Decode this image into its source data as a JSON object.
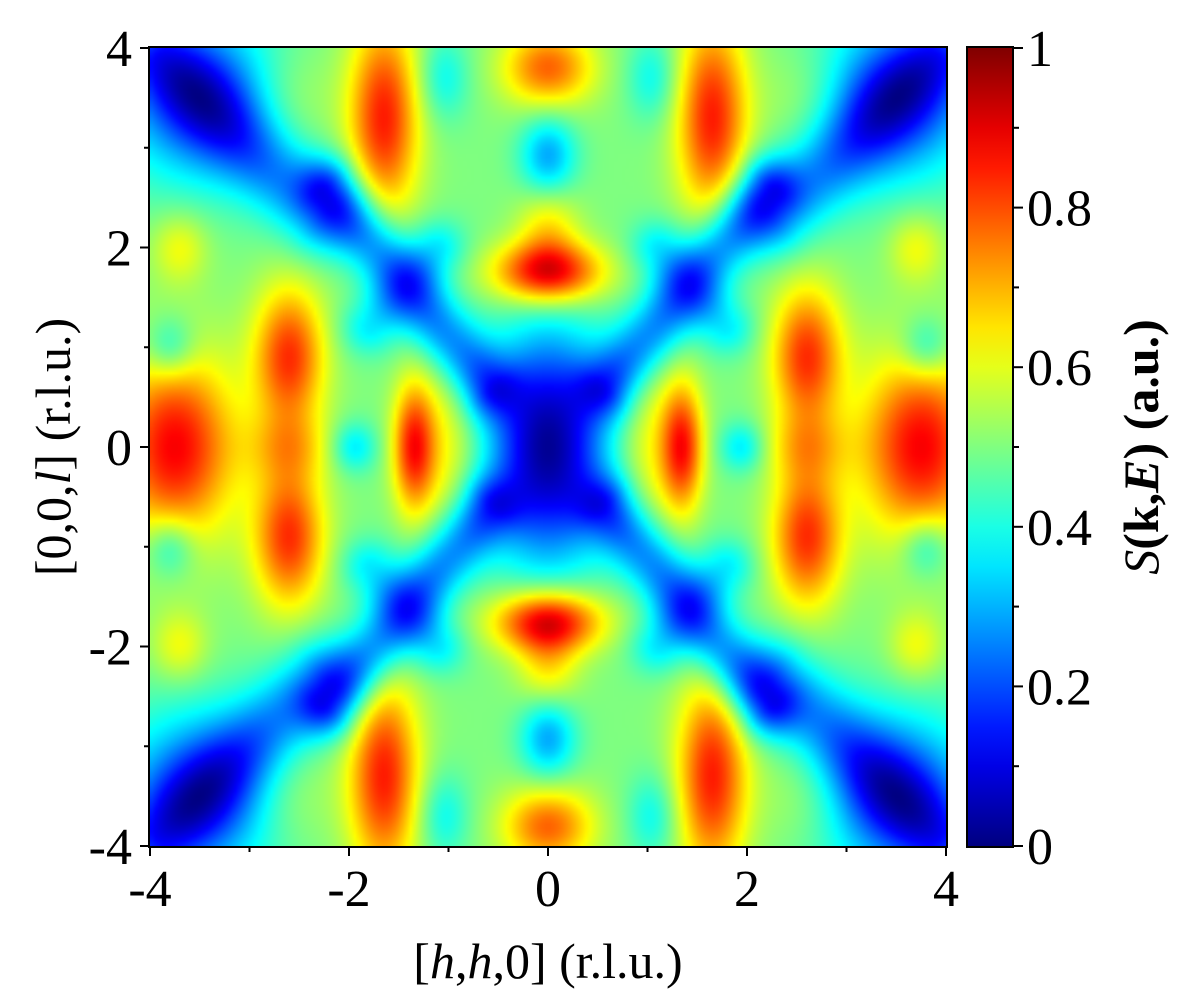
{
  "chart_data": {
    "type": "heatmap",
    "title": "",
    "xlabel": {
      "prefix": "[",
      "h1": "h",
      "comma1": ",",
      "h2": "h",
      "tail": ",0] (r.l.u.)"
    },
    "ylabel": {
      "prefix": "[0,0,",
      "l": "l",
      "tail": "] (r.l.u.)"
    },
    "colorbar_label": {
      "S": "S",
      "open": "(",
      "k": "k",
      "comma": ",",
      "E": "E",
      "close": ")",
      "unit": " (a.u.)"
    },
    "xlim": [
      -4,
      4
    ],
    "ylim": [
      -4,
      4
    ],
    "clim": [
      0,
      1
    ],
    "colormap": "jet",
    "x_ticks": [
      {
        "value": -4,
        "label": "-4"
      },
      {
        "value": -2,
        "label": "-2"
      },
      {
        "value": 0,
        "label": "0"
      },
      {
        "value": 2,
        "label": "2"
      },
      {
        "value": 4,
        "label": "4"
      }
    ],
    "y_ticks": [
      {
        "value": -4,
        "label": "-4"
      },
      {
        "value": -2,
        "label": "-2"
      },
      {
        "value": 0,
        "label": "0"
      },
      {
        "value": 2,
        "label": "2"
      },
      {
        "value": 4,
        "label": "4"
      }
    ],
    "colorbar_ticks": [
      {
        "value": 0,
        "label": "0"
      },
      {
        "value": 0.2,
        "label": "0.2"
      },
      {
        "value": 0.4,
        "label": "0.4"
      },
      {
        "value": 0.6,
        "label": "0.6"
      },
      {
        "value": 0.8,
        "label": "0.8"
      },
      {
        "value": 1,
        "label": "1"
      }
    ],
    "baseline": 0.5,
    "features": [
      {
        "x": 0,
        "y": 0,
        "sx": 0.42,
        "sy": 0.8,
        "amp": -0.48
      },
      {
        "x": 0,
        "y": 1.75,
        "sx": 0.38,
        "sy": 0.22,
        "amp": 0.42
      },
      {
        "x": 0,
        "y": -1.75,
        "sx": 0.38,
        "sy": 0.22,
        "amp": 0.42
      },
      {
        "x": 0,
        "y": 2.25,
        "sx": 0.22,
        "sy": 0.3,
        "amp": 0.15
      },
      {
        "x": 0,
        "y": -2.25,
        "sx": 0.22,
        "sy": 0.3,
        "amp": 0.15
      },
      {
        "x": 0,
        "y": 2.9,
        "sx": 0.2,
        "sy": 0.3,
        "amp": -0.22
      },
      {
        "x": 0,
        "y": -2.9,
        "sx": 0.2,
        "sy": 0.3,
        "amp": -0.22
      },
      {
        "x": 0,
        "y": 3.8,
        "sx": 0.32,
        "sy": 0.28,
        "amp": 0.28
      },
      {
        "x": 0,
        "y": -3.8,
        "sx": 0.32,
        "sy": 0.28,
        "amp": 0.28
      },
      {
        "x": 1.35,
        "y": 0,
        "sx": 0.15,
        "sy": 0.45,
        "amp": 0.35
      },
      {
        "x": -1.35,
        "y": 0,
        "sx": 0.15,
        "sy": 0.45,
        "amp": 0.35
      },
      {
        "x": 1.0,
        "y": 0,
        "sx": 0.22,
        "sy": 0.7,
        "amp": 0.12
      },
      {
        "x": -1.0,
        "y": 0,
        "sx": 0.22,
        "sy": 0.7,
        "amp": 0.12
      },
      {
        "x": 2.6,
        "y": 0.9,
        "sx": 0.25,
        "sy": 0.5,
        "amp": 0.33
      },
      {
        "x": -2.6,
        "y": 0.9,
        "sx": 0.25,
        "sy": 0.5,
        "amp": 0.33
      },
      {
        "x": 2.6,
        "y": -0.9,
        "sx": 0.25,
        "sy": 0.5,
        "amp": 0.33
      },
      {
        "x": -2.6,
        "y": -0.9,
        "sx": 0.25,
        "sy": 0.5,
        "amp": 0.33
      },
      {
        "x": 2.6,
        "y": 0,
        "sx": 0.3,
        "sy": 0.25,
        "amp": 0.12
      },
      {
        "x": -2.6,
        "y": 0,
        "sx": 0.3,
        "sy": 0.25,
        "amp": 0.12
      },
      {
        "x": 1.95,
        "y": 0,
        "sx": 0.16,
        "sy": 0.18,
        "amp": -0.15
      },
      {
        "x": -1.95,
        "y": 0,
        "sx": 0.16,
        "sy": 0.18,
        "amp": -0.15
      },
      {
        "x": 3.75,
        "y": 0,
        "sx": 0.42,
        "sy": 0.65,
        "amp": 0.38
      },
      {
        "x": -3.75,
        "y": 0,
        "sx": 0.42,
        "sy": 0.65,
        "amp": 0.38
      },
      {
        "x": 3.7,
        "y": 2.0,
        "sx": 0.2,
        "sy": 0.25,
        "amp": 0.12
      },
      {
        "x": -3.7,
        "y": 2.0,
        "sx": 0.2,
        "sy": 0.25,
        "amp": 0.12
      },
      {
        "x": 3.7,
        "y": -2.0,
        "sx": 0.2,
        "sy": 0.25,
        "amp": 0.12
      },
      {
        "x": -3.7,
        "y": -2.0,
        "sx": 0.2,
        "sy": 0.25,
        "amp": 0.12
      },
      {
        "x": 3.8,
        "y": 1.0,
        "sx": 0.18,
        "sy": 0.22,
        "amp": -0.15
      },
      {
        "x": -3.8,
        "y": 1.0,
        "sx": 0.18,
        "sy": 0.22,
        "amp": -0.15
      },
      {
        "x": 3.8,
        "y": -1.0,
        "sx": 0.18,
        "sy": 0.22,
        "amp": -0.15
      },
      {
        "x": -3.8,
        "y": -1.0,
        "sx": 0.18,
        "sy": 0.22,
        "amp": -0.15
      },
      {
        "x": 1.65,
        "y": 3.3,
        "sx": 0.25,
        "sy": 0.7,
        "amp": 0.35
      },
      {
        "x": -1.65,
        "y": 3.3,
        "sx": 0.25,
        "sy": 0.7,
        "amp": 0.35
      },
      {
        "x": 1.65,
        "y": -3.3,
        "sx": 0.25,
        "sy": 0.7,
        "amp": 0.35
      },
      {
        "x": -1.65,
        "y": -3.3,
        "sx": 0.25,
        "sy": 0.7,
        "amp": 0.35
      },
      {
        "x": 1.05,
        "y": 3.7,
        "sx": 0.18,
        "sy": 0.3,
        "amp": -0.12
      },
      {
        "x": -1.05,
        "y": 3.7,
        "sx": 0.18,
        "sy": 0.3,
        "amp": -0.12
      },
      {
        "x": 1.05,
        "y": -3.7,
        "sx": 0.18,
        "sy": 0.3,
        "amp": -0.12
      },
      {
        "x": -1.05,
        "y": -3.7,
        "sx": 0.18,
        "sy": 0.3,
        "amp": -0.12
      },
      {
        "x": 3.5,
        "y": 3.5,
        "sx": 0.6,
        "sy": 0.6,
        "amp": -0.3
      },
      {
        "x": -3.5,
        "y": 3.5,
        "sx": 0.6,
        "sy": 0.6,
        "amp": -0.3
      },
      {
        "x": 3.5,
        "y": -3.5,
        "sx": 0.6,
        "sy": 0.6,
        "amp": -0.3
      },
      {
        "x": -3.5,
        "y": -3.5,
        "sx": 0.6,
        "sy": 0.6,
        "amp": -0.3
      },
      {
        "x": 2.6,
        "y": 3.5,
        "sx": 0.35,
        "sy": 0.4,
        "amp": 0.08
      },
      {
        "x": -2.6,
        "y": 3.5,
        "sx": 0.35,
        "sy": 0.4,
        "amp": 0.08
      },
      {
        "x": 2.6,
        "y": -3.5,
        "sx": 0.35,
        "sy": 0.4,
        "amp": 0.08
      },
      {
        "x": -2.6,
        "y": -3.5,
        "sx": 0.35,
        "sy": 0.4,
        "amp": 0.08
      }
    ],
    "ridges": [
      {
        "x1": 0.6,
        "y1": 0.6,
        "x2": 2.2,
        "y2": 2.6,
        "w": 0.22,
        "amp": -0.26
      },
      {
        "x1": -0.6,
        "y1": 0.6,
        "x2": -2.2,
        "y2": 2.6,
        "w": 0.22,
        "amp": -0.26
      },
      {
        "x1": 0.6,
        "y1": -0.6,
        "x2": 2.2,
        "y2": -2.6,
        "w": 0.22,
        "amp": -0.26
      },
      {
        "x1": -0.6,
        "y1": -0.6,
        "x2": -2.2,
        "y2": -2.6,
        "w": 0.22,
        "amp": -0.26
      },
      {
        "x1": 1.1,
        "y1": 2.0,
        "x2": 1.8,
        "y2": 1.2,
        "w": 0.2,
        "amp": -0.14
      },
      {
        "x1": -1.1,
        "y1": 2.0,
        "x2": -1.8,
        "y2": 1.2,
        "w": 0.2,
        "amp": -0.14
      },
      {
        "x1": 1.1,
        "y1": -2.0,
        "x2": 1.8,
        "y2": -1.2,
        "w": 0.2,
        "amp": -0.14
      },
      {
        "x1": -1.1,
        "y1": -2.0,
        "x2": -1.8,
        "y2": -1.2,
        "w": 0.2,
        "amp": -0.14
      },
      {
        "x1": 2.3,
        "y1": 2.3,
        "x2": 3.9,
        "y2": 3.9,
        "w": 0.28,
        "amp": -0.2
      },
      {
        "x1": -2.3,
        "y1": 2.3,
        "x2": -3.9,
        "y2": 3.9,
        "w": 0.28,
        "amp": -0.2
      },
      {
        "x1": 2.3,
        "y1": -2.3,
        "x2": 3.9,
        "y2": -3.9,
        "w": 0.28,
        "amp": -0.2
      },
      {
        "x1": -2.3,
        "y1": -2.3,
        "x2": -3.9,
        "y2": -3.9,
        "w": 0.28,
        "amp": -0.2
      }
    ]
  }
}
